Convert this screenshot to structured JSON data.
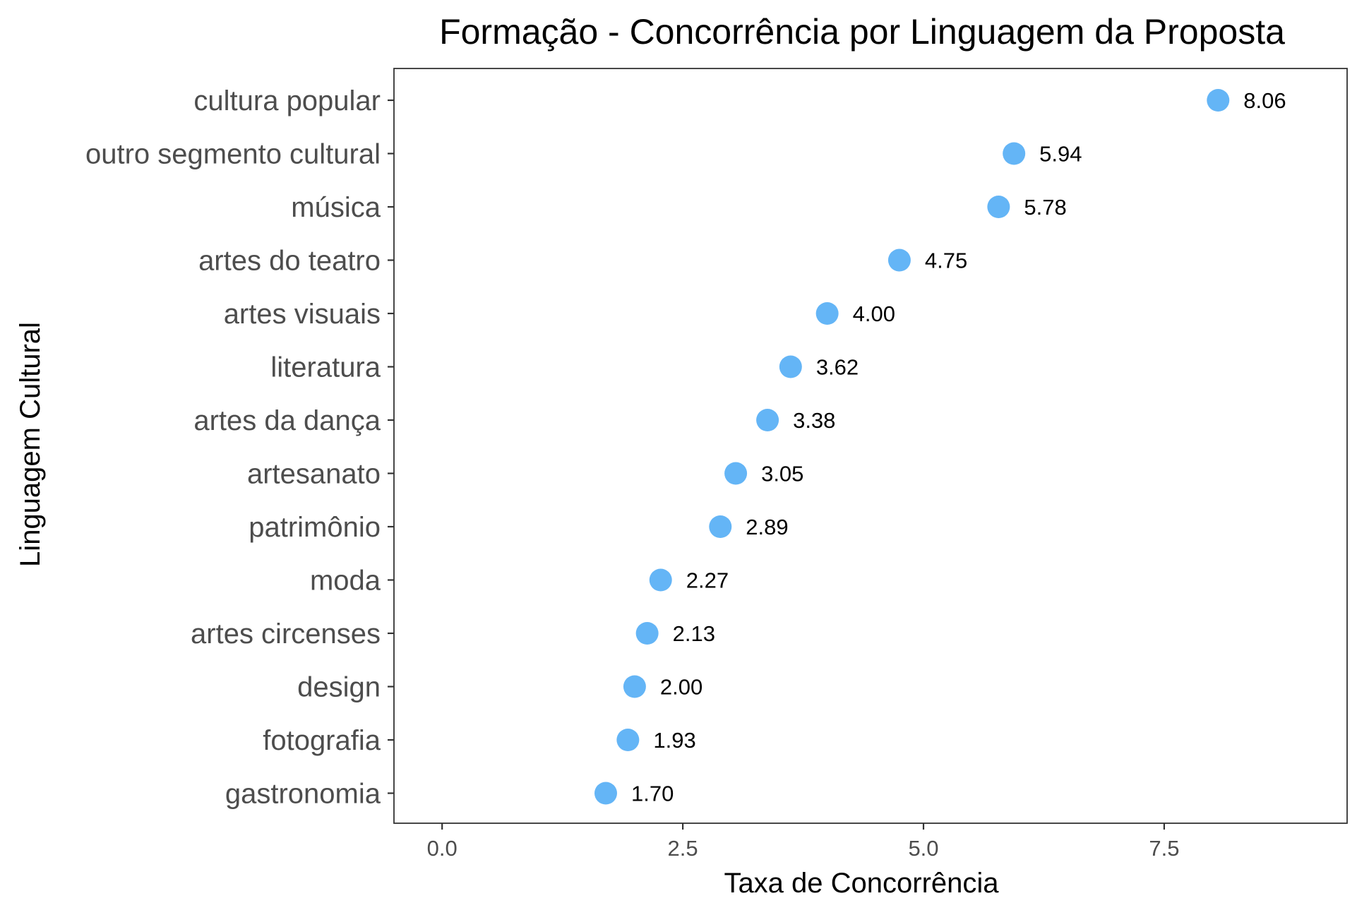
{
  "chart_data": {
    "type": "scatter",
    "title": "Formação - Concorrência por Linguagem da Proposta",
    "xlabel": "Taxa de Concorrência",
    "ylabel": "Linguagem Cultural",
    "xlim": [
      -0.5,
      9.4
    ],
    "xticks": [
      0.0,
      2.5,
      5.0,
      7.5
    ],
    "xtick_labels": [
      "0.0",
      "2.5",
      "5.0",
      "7.5"
    ],
    "grid": false,
    "legend": "none",
    "point_color": "#64b5f6",
    "categories": [
      "cultura popular",
      "outro segmento cultural",
      "música",
      "artes do teatro",
      "artes visuais",
      "literatura",
      "artes da dança",
      "artesanato",
      "patrimônio",
      "moda",
      "artes circenses",
      "design",
      "fotografia",
      "gastronomia"
    ],
    "values": [
      8.06,
      5.94,
      5.78,
      4.75,
      4.0,
      3.62,
      3.38,
      3.05,
      2.89,
      2.27,
      2.13,
      2.0,
      1.93,
      1.7
    ],
    "value_labels": [
      "8.06",
      "5.94",
      "5.78",
      "4.75",
      "4.00",
      "3.62",
      "3.38",
      "3.05",
      "2.89",
      "2.27",
      "2.13",
      "2.00",
      "1.93",
      "1.70"
    ]
  }
}
